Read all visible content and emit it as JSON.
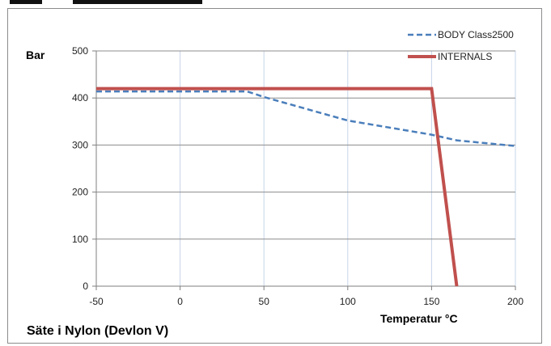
{
  "chart_data": {
    "type": "line",
    "ylabel": "Bar",
    "xlabel": "Temperatur °C",
    "caption": "Säte i Nylon (Devlon V)",
    "xlim": [
      -50,
      200
    ],
    "ylim": [
      0,
      500
    ],
    "xticks": [
      -50,
      0,
      50,
      100,
      150,
      200
    ],
    "yticks": [
      0,
      100,
      200,
      300,
      400,
      500
    ],
    "grid": true,
    "legend_position": "top-right",
    "series": [
      {
        "name": "BODY Class2500",
        "style": "dashed",
        "color": "#4a7ebb",
        "points": [
          [
            -50,
            414
          ],
          [
            40,
            414
          ],
          [
            50,
            402
          ],
          [
            100,
            352
          ],
          [
            150,
            322
          ],
          [
            165,
            310
          ],
          [
            200,
            298
          ]
        ]
      },
      {
        "name": "INTERNALS",
        "style": "solid",
        "color": "#c0504d",
        "points": [
          [
            -50,
            420
          ],
          [
            150,
            420
          ],
          [
            165,
            0
          ]
        ]
      }
    ]
  }
}
